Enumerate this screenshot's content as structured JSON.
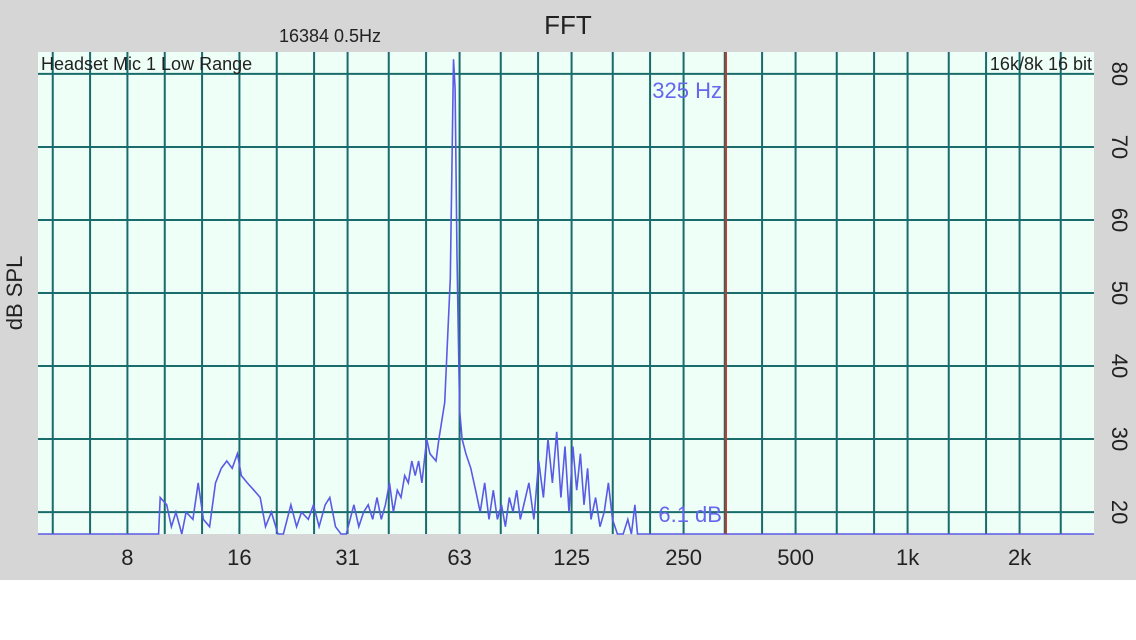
{
  "chart_data": {
    "type": "line",
    "title": "FFT",
    "info": "16384  0.5Hz",
    "input": "Headset Mic 1 Low Range",
    "format": "16k/8k 16 bit",
    "ylabel": "dB SPL",
    "xscale": "log",
    "xlim": [
      4.6,
      3170
    ],
    "xticks": [
      8,
      16,
      {
        "value": 31.25,
        "label": "31"
      },
      {
        "value": 62.5,
        "label": "63"
      },
      125,
      250,
      500,
      {
        "value": 1000,
        "label": "1k"
      },
      {
        "value": 2000,
        "label": "2k"
      }
    ],
    "ylim": [
      17,
      83
    ],
    "yticks": [
      20,
      30,
      40,
      50,
      60,
      70,
      80
    ],
    "grid": true,
    "color": "#5a5ae6",
    "cursor_x": 325,
    "cursor_color": "#c0392b",
    "cursor_label": "325 Hz",
    "cursor_level": "6.1 dB",
    "x": [
      4.6,
      9.7,
      9.8,
      10.2,
      10.5,
      10.8,
      11.2,
      11.5,
      12,
      12.4,
      12.8,
      13.3,
      13.8,
      14.3,
      14.8,
      15.3,
      15.8,
      16.2,
      16.8,
      17.5,
      18.2,
      18.8,
      19.5,
      20.3,
      21,
      22,
      22.8,
      23.5,
      24.5,
      25.3,
      26.2,
      27.2,
      28,
      29,
      30,
      31,
      32.5,
      33.5,
      34.5,
      35.5,
      36.5,
      37.5,
      38.5,
      39.5,
      40.5,
      41.5,
      42.5,
      43.5,
      44.5,
      45.5,
      46.5,
      47.5,
      48.5,
      49.5,
      51,
      52,
      54,
      55,
      57,
      59,
      60.2,
      60.8,
      61.5,
      62.5,
      63.5,
      65,
      67,
      69,
      71,
      73,
      75,
      77,
      79,
      81,
      83,
      85,
      87,
      89,
      91,
      93,
      96,
      99,
      102,
      105,
      108,
      111,
      114,
      117,
      120,
      123,
      126,
      129,
      132,
      135,
      138,
      141,
      145,
      149,
      153,
      157,
      161,
      166,
      172,
      177,
      181,
      185,
      188,
      3170
    ],
    "values": [
      17,
      17,
      22,
      21,
      18,
      20,
      17,
      20,
      19,
      24,
      19,
      18,
      24,
      26,
      27,
      26,
      28,
      25,
      24,
      23,
      22,
      18,
      20,
      17,
      17,
      21,
      18,
      20,
      19,
      21,
      18,
      21,
      22,
      18,
      17,
      17,
      21,
      18,
      20,
      21,
      19,
      22,
      19,
      21,
      24,
      20,
      23,
      22,
      25,
      24,
      27,
      25,
      27,
      24,
      30,
      28,
      27,
      30,
      35,
      52,
      82,
      78,
      55,
      34,
      30,
      28,
      26,
      23,
      20,
      24,
      19,
      23,
      19,
      21,
      18,
      22,
      20,
      23,
      19,
      21,
      24,
      19,
      27,
      22,
      30,
      24,
      31,
      22,
      29,
      20,
      29,
      23,
      28,
      21,
      26,
      19,
      22,
      18,
      20,
      24,
      19,
      17,
      17,
      19,
      17,
      21,
      17,
      17
    ]
  }
}
